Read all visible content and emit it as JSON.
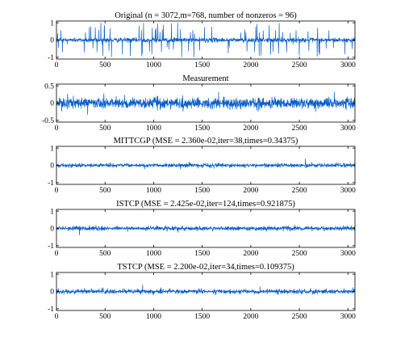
{
  "chart_data": [
    {
      "type": "line",
      "title": "Original (n = 3072,m=768, number of nonzeros = 96)",
      "xlim": [
        0,
        3072
      ],
      "ylim": [
        -1.1,
        1.1
      ],
      "xticks": [
        0,
        500,
        1000,
        1500,
        2000,
        2500,
        3000
      ],
      "yticks": [
        1,
        0,
        -1
      ],
      "yticklabels": [
        "1",
        "0",
        "-1"
      ],
      "series": [
        {
          "style": "sparse-spikes",
          "amplitude": 1.0,
          "noise": 0.06
        }
      ]
    },
    {
      "type": "line",
      "title": "Measurement",
      "xlim": [
        0,
        3072
      ],
      "ylim": [
        -0.55,
        0.55
      ],
      "xticks": [
        0,
        500,
        1000,
        1500,
        2000,
        2500,
        3000
      ],
      "yticks": [
        0.5,
        0,
        -0.5
      ],
      "yticklabels": [
        "0.5",
        "0",
        "-0.5"
      ],
      "series": [
        {
          "style": "dense-noise",
          "amplitude": 0.17
        }
      ]
    },
    {
      "type": "line",
      "title": "MITTCGP (MSE = 2.360e-02,iter=38,times=0.34375)",
      "xlim": [
        0,
        3072
      ],
      "ylim": [
        -1.1,
        1.1
      ],
      "xticks": [
        0,
        500,
        1000,
        1500,
        2000,
        2500,
        3000
      ],
      "yticks": [
        1,
        0,
        -1
      ],
      "yticklabels": [
        "1",
        "0",
        "-1"
      ],
      "series": [
        {
          "style": "dense-noise",
          "amplitude": 0.12
        }
      ]
    },
    {
      "type": "line",
      "title": "ISTCP (MSE = 2.425e-02,iter=124,times=0.921875)",
      "xlim": [
        0,
        3072
      ],
      "ylim": [
        -1.1,
        1.1
      ],
      "xticks": [
        0,
        500,
        1000,
        1500,
        2000,
        2500,
        3000
      ],
      "yticks": [
        1,
        0,
        -1
      ],
      "yticklabels": [
        "1",
        "0",
        "-1"
      ],
      "series": [
        {
          "style": "dense-noise",
          "amplitude": 0.13
        }
      ]
    },
    {
      "type": "line",
      "title": "TSTCP (MSE = 2.200e-02,iter=34,times=0.109375)",
      "xlim": [
        0,
        3072
      ],
      "ylim": [
        -1.1,
        1.1
      ],
      "xticks": [
        0,
        500,
        1000,
        1500,
        2000,
        2500,
        3000
      ],
      "yticks": [
        1,
        0,
        -1
      ],
      "yticklabels": [
        "1",
        "0",
        "-1"
      ],
      "series": [
        {
          "style": "dense-noise",
          "amplitude": 0.14
        }
      ]
    }
  ],
  "colors": {
    "series": "#0a5ec9",
    "axes": "#000000"
  }
}
